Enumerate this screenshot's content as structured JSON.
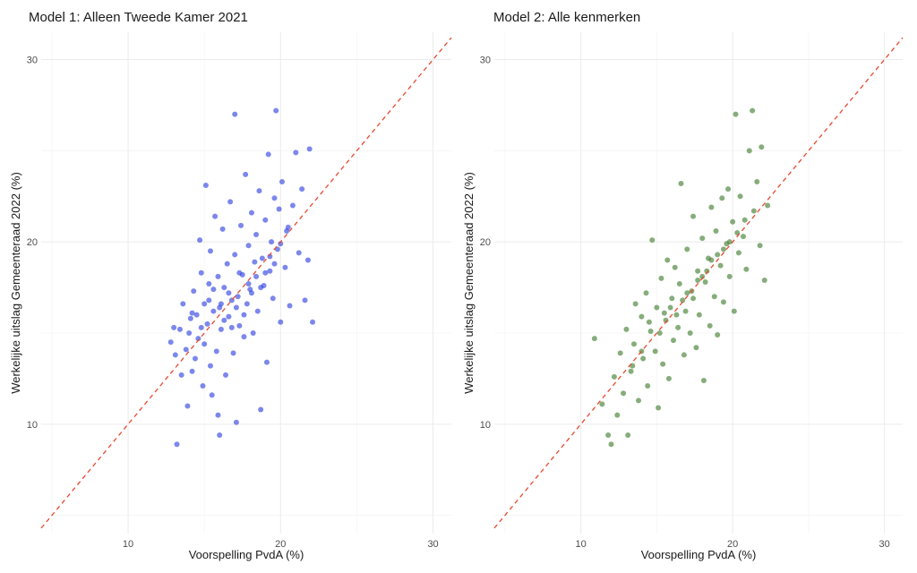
{
  "chart_data": [
    {
      "type": "scatter",
      "title": "Model 1: Alleen Tweede Kamer 2021",
      "xlabel": "Voorspelling PvdA (%)",
      "ylabel": "Werkelijke uitslag Gemeenteraad 2022 (%)",
      "xlim": [
        4.3,
        31.2
      ],
      "ylim": [
        4.0,
        31.5
      ],
      "xticks": [
        10,
        20,
        30
      ],
      "yticks": [
        10,
        20,
        30
      ],
      "grid": true,
      "color": "#2b3de0",
      "reference_line": "y = x",
      "points": [
        [
          12.8,
          14.5
        ],
        [
          13.1,
          13.8
        ],
        [
          13.2,
          8.9
        ],
        [
          13.4,
          15.2
        ],
        [
          13.6,
          16.6
        ],
        [
          13.8,
          14.1
        ],
        [
          13.9,
          11.0
        ],
        [
          14.0,
          15.0
        ],
        [
          14.1,
          15.8
        ],
        [
          14.2,
          12.9
        ],
        [
          14.3,
          17.3
        ],
        [
          14.4,
          13.6
        ],
        [
          14.5,
          16.0
        ],
        [
          14.6,
          14.7
        ],
        [
          14.7,
          20.1
        ],
        [
          14.8,
          18.3
        ],
        [
          14.9,
          12.1
        ],
        [
          15.0,
          16.6
        ],
        [
          15.0,
          14.4
        ],
        [
          15.1,
          23.1
        ],
        [
          15.2,
          15.5
        ],
        [
          15.3,
          17.7
        ],
        [
          15.4,
          19.5
        ],
        [
          15.4,
          13.2
        ],
        [
          15.5,
          11.6
        ],
        [
          15.6,
          16.2
        ],
        [
          15.7,
          21.4
        ],
        [
          15.8,
          14.0
        ],
        [
          15.9,
          18.1
        ],
        [
          15.9,
          10.5
        ],
        [
          16.0,
          9.4
        ],
        [
          16.0,
          16.4
        ],
        [
          16.1,
          15.2
        ],
        [
          16.2,
          20.7
        ],
        [
          16.3,
          17.5
        ],
        [
          16.4,
          12.7
        ],
        [
          16.5,
          18.8
        ],
        [
          16.6,
          15.9
        ],
        [
          16.7,
          22.2
        ],
        [
          16.8,
          16.8
        ],
        [
          16.9,
          13.9
        ],
        [
          17.0,
          19.3
        ],
        [
          17.0,
          27.0
        ],
        [
          17.1,
          10.1
        ],
        [
          17.2,
          17.0
        ],
        [
          17.3,
          15.4
        ],
        [
          17.4,
          20.9
        ],
        [
          17.5,
          18.2
        ],
        [
          17.6,
          14.8
        ],
        [
          17.7,
          23.7
        ],
        [
          17.8,
          16.6
        ],
        [
          17.9,
          19.8
        ],
        [
          18.0,
          17.4
        ],
        [
          18.1,
          21.6
        ],
        [
          18.2,
          15.0
        ],
        [
          18.3,
          18.9
        ],
        [
          18.4,
          20.4
        ],
        [
          18.5,
          16.2
        ],
        [
          18.6,
          22.8
        ],
        [
          18.7,
          10.8
        ],
        [
          18.8,
          19.1
        ],
        [
          18.9,
          17.6
        ],
        [
          19.0,
          21.2
        ],
        [
          19.1,
          13.4
        ],
        [
          19.2,
          24.8
        ],
        [
          19.3,
          18.4
        ],
        [
          19.4,
          20.0
        ],
        [
          19.5,
          16.9
        ],
        [
          19.6,
          22.4
        ],
        [
          19.7,
          27.2
        ],
        [
          19.8,
          19.6
        ],
        [
          19.9,
          21.8
        ],
        [
          20.0,
          15.6
        ],
        [
          20.1,
          23.3
        ],
        [
          20.3,
          18.6
        ],
        [
          20.4,
          20.6
        ],
        [
          20.6,
          16.5
        ],
        [
          20.8,
          22.0
        ],
        [
          21.0,
          24.9
        ],
        [
          21.2,
          19.4
        ],
        [
          21.4,
          22.9
        ],
        [
          21.6,
          16.8
        ],
        [
          21.8,
          19.0
        ],
        [
          21.9,
          25.1
        ],
        [
          22.1,
          15.6
        ],
        [
          13.0,
          15.3
        ],
        [
          13.5,
          12.7
        ],
        [
          14.2,
          16.1
        ],
        [
          14.8,
          15.3
        ],
        [
          15.3,
          16.8
        ],
        [
          15.6,
          17.4
        ],
        [
          16.1,
          16.6
        ],
        [
          16.3,
          15.7
        ],
        [
          16.6,
          17.2
        ],
        [
          16.8,
          15.3
        ],
        [
          17.1,
          16.4
        ],
        [
          17.3,
          18.3
        ],
        [
          17.6,
          16.0
        ],
        [
          17.9,
          17.7
        ],
        [
          18.1,
          17.2
        ],
        [
          18.4,
          18.1
        ],
        [
          18.7,
          17.5
        ],
        [
          19.0,
          18.3
        ],
        [
          19.3,
          19.2
        ],
        [
          19.6,
          18.8
        ],
        [
          20.0,
          19.9
        ],
        [
          20.5,
          20.8
        ]
      ]
    },
    {
      "type": "scatter",
      "title": "Model 2: Alle kenmerken",
      "xlabel": "Voorspelling PvdA (%)",
      "ylabel": "Werkelijke uitslag Gemeenteraad 2022 (%)",
      "xlim": [
        4.3,
        31.2
      ],
      "ylim": [
        4.0,
        31.5
      ],
      "xticks": [
        10,
        20,
        30
      ],
      "yticks": [
        10,
        20,
        30
      ],
      "grid": true,
      "color": "#3c7a2a",
      "reference_line": "y = x",
      "points": [
        [
          10.9,
          14.7
        ],
        [
          11.4,
          11.1
        ],
        [
          11.8,
          9.4
        ],
        [
          12.0,
          8.9
        ],
        [
          12.2,
          12.6
        ],
        [
          12.4,
          10.5
        ],
        [
          12.6,
          13.9
        ],
        [
          12.8,
          11.7
        ],
        [
          13.0,
          15.2
        ],
        [
          13.1,
          9.4
        ],
        [
          13.3,
          12.9
        ],
        [
          13.5,
          14.4
        ],
        [
          13.6,
          16.6
        ],
        [
          13.8,
          11.3
        ],
        [
          14.0,
          15.9
        ],
        [
          14.1,
          13.6
        ],
        [
          14.3,
          17.2
        ],
        [
          14.4,
          12.1
        ],
        [
          14.6,
          15.1
        ],
        [
          14.7,
          20.1
        ],
        [
          14.9,
          14.0
        ],
        [
          15.0,
          16.4
        ],
        [
          15.1,
          10.9
        ],
        [
          15.3,
          18.0
        ],
        [
          15.4,
          13.3
        ],
        [
          15.6,
          15.7
        ],
        [
          15.7,
          19.0
        ],
        [
          15.8,
          12.5
        ],
        [
          16.0,
          16.9
        ],
        [
          16.1,
          14.6
        ],
        [
          16.2,
          18.6
        ],
        [
          16.4,
          15.3
        ],
        [
          16.5,
          17.7
        ],
        [
          16.6,
          23.2
        ],
        [
          16.8,
          13.8
        ],
        [
          16.9,
          16.2
        ],
        [
          17.0,
          19.6
        ],
        [
          17.2,
          15.0
        ],
        [
          17.3,
          17.3
        ],
        [
          17.4,
          21.4
        ],
        [
          17.6,
          14.2
        ],
        [
          17.7,
          18.4
        ],
        [
          17.8,
          16.0
        ],
        [
          18.0,
          20.2
        ],
        [
          18.1,
          12.4
        ],
        [
          18.2,
          17.8
        ],
        [
          18.4,
          19.1
        ],
        [
          18.5,
          15.4
        ],
        [
          18.6,
          21.9
        ],
        [
          18.8,
          17.0
        ],
        [
          18.9,
          20.6
        ],
        [
          19.0,
          14.9
        ],
        [
          19.2,
          18.7
        ],
        [
          19.3,
          22.4
        ],
        [
          19.4,
          16.7
        ],
        [
          19.6,
          19.9
        ],
        [
          19.7,
          22.9
        ],
        [
          19.8,
          18.1
        ],
        [
          20.0,
          21.1
        ],
        [
          20.1,
          16.2
        ],
        [
          20.2,
          27.0
        ],
        [
          20.4,
          19.4
        ],
        [
          20.5,
          22.5
        ],
        [
          20.7,
          20.3
        ],
        [
          20.9,
          18.5
        ],
        [
          21.1,
          25.0
        ],
        [
          21.3,
          27.2
        ],
        [
          21.4,
          21.7
        ],
        [
          21.6,
          23.3
        ],
        [
          21.8,
          19.8
        ],
        [
          21.9,
          25.2
        ],
        [
          22.1,
          17.9
        ],
        [
          22.3,
          22.0
        ],
        [
          13.4,
          13.2
        ],
        [
          14.0,
          14.0
        ],
        [
          14.5,
          15.6
        ],
        [
          15.2,
          15.0
        ],
        [
          15.5,
          16.1
        ],
        [
          15.9,
          16.4
        ],
        [
          16.3,
          16.0
        ],
        [
          16.7,
          16.8
        ],
        [
          17.0,
          17.2
        ],
        [
          17.4,
          16.9
        ],
        [
          17.7,
          17.9
        ],
        [
          18.0,
          18.1
        ],
        [
          18.3,
          18.4
        ],
        [
          18.6,
          19.0
        ],
        [
          19.0,
          19.3
        ],
        [
          19.4,
          19.6
        ],
        [
          19.8,
          20.0
        ],
        [
          20.3,
          20.5
        ],
        [
          20.8,
          21.2
        ]
      ]
    }
  ]
}
